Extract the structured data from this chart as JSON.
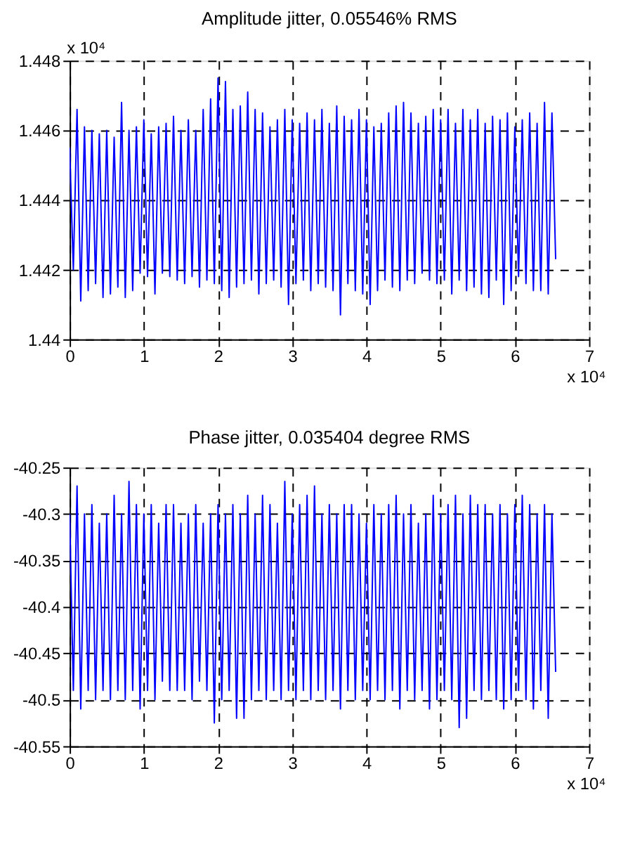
{
  "chart_data": [
    {
      "type": "line",
      "title": "Amplitude jitter,  0.05546% RMS",
      "series": [
        {
          "color": "#0000ff",
          "x": [
            0,
            0.05,
            0.1,
            0.15,
            0.2,
            0.25,
            0.3,
            0.35,
            0.4,
            0.45,
            0.5,
            0.55,
            0.6,
            0.65,
            0.7,
            0.75,
            0.8,
            0.85,
            0.9,
            0.95,
            1,
            1.05,
            1.1,
            1.15,
            1.2,
            1.25,
            1.3,
            1.35,
            1.4,
            1.45,
            1.5,
            1.55,
            1.6,
            1.65,
            1.7,
            1.75,
            1.8,
            1.85,
            1.9,
            1.95,
            2,
            2.05,
            2.1,
            2.15,
            2.2,
            2.25,
            2.3,
            2.35,
            2.4,
            2.45,
            2.5,
            2.55,
            2.6,
            2.65,
            2.7,
            2.75,
            2.8,
            2.85,
            2.9,
            2.95,
            3,
            3.05,
            3.1,
            3.15,
            3.2,
            3.25,
            3.3,
            3.35,
            3.4,
            3.45,
            3.5,
            3.55,
            3.6,
            3.65,
            3.7,
            3.75,
            3.8,
            3.85,
            3.9,
            3.95,
            4,
            4.05,
            4.1,
            4.15,
            4.2,
            4.25,
            4.3,
            4.35,
            4.4,
            4.45,
            4.5,
            4.55,
            4.6,
            4.65,
            4.7,
            4.75,
            4.8,
            4.85,
            4.9,
            4.95,
            5,
            5.05,
            5.1,
            5.15,
            5.2,
            5.25,
            5.3,
            5.35,
            5.4,
            5.45,
            5.5,
            5.55,
            5.6,
            5.65,
            5.7,
            5.75,
            5.8,
            5.85,
            5.9,
            5.95,
            6,
            6.05,
            6.1,
            6.15,
            6.2,
            6.25,
            6.3,
            6.35,
            6.4,
            6.45,
            6.5,
            6.55
          ],
          "values": [
            1.4455,
            1.442,
            1.4466,
            1.4411,
            1.4461,
            1.4414,
            1.446,
            1.4416,
            1.4459,
            1.4412,
            1.446,
            1.4413,
            1.4458,
            1.4415,
            1.4468,
            1.4412,
            1.446,
            1.4414,
            1.4461,
            1.4419,
            1.4463,
            1.4418,
            1.4459,
            1.4413,
            1.4461,
            1.4419,
            1.4462,
            1.4418,
            1.4464,
            1.4417,
            1.446,
            1.4416,
            1.4463,
            1.4418,
            1.446,
            1.4415,
            1.4466,
            1.4417,
            1.4469,
            1.4416,
            1.4475,
            1.4414,
            1.4474,
            1.4412,
            1.4466,
            1.4415,
            1.4467,
            1.4416,
            1.4471,
            1.4417,
            1.4466,
            1.4413,
            1.4465,
            1.4416,
            1.4461,
            1.4417,
            1.4463,
            1.4415,
            1.4466,
            1.441,
            1.4463,
            1.4416,
            1.4462,
            1.4417,
            1.4465,
            1.4414,
            1.4463,
            1.4416,
            1.4466,
            1.4415,
            1.4462,
            1.4414,
            1.4467,
            1.4407,
            1.4464,
            1.4416,
            1.4463,
            1.4414,
            1.4466,
            1.4413,
            1.4463,
            1.441,
            1.4461,
            1.4414,
            1.4462,
            1.4417,
            1.4465,
            1.4415,
            1.4467,
            1.4414,
            1.4468,
            1.4417,
            1.4465,
            1.4416,
            1.4462,
            1.4419,
            1.4464,
            1.4417,
            1.4466,
            1.4416,
            1.4463,
            1.4417,
            1.4466,
            1.4413,
            1.4462,
            1.4417,
            1.4466,
            1.4414,
            1.4463,
            1.4415,
            1.4466,
            1.4413,
            1.4462,
            1.4412,
            1.4464,
            1.4417,
            1.4463,
            1.441,
            1.4465,
            1.4414,
            1.4461,
            1.4418,
            1.4463,
            1.4416,
            1.4465,
            1.4414,
            1.4462,
            1.4414,
            1.4468,
            1.4413,
            1.4465,
            1.4423
          ]
        }
      ],
      "xlim": [
        0,
        7
      ],
      "xticks": [
        0,
        1,
        2,
        3,
        4,
        5,
        6,
        7
      ],
      "ylim": [
        1.44,
        1.448
      ],
      "yticks": [
        1.44,
        1.442,
        1.444,
        1.446,
        1.448
      ],
      "grid": true,
      "annotations": [
        "x 10⁴",
        "x 10⁴"
      ]
    },
    {
      "type": "line",
      "title": "Phase jitter, 0.035404 degree RMS",
      "series": [
        {
          "color": "#0000ff",
          "x": [
            0,
            0.05,
            0.1,
            0.15,
            0.2,
            0.25,
            0.3,
            0.35,
            0.4,
            0.45,
            0.5,
            0.55,
            0.6,
            0.65,
            0.7,
            0.75,
            0.8,
            0.85,
            0.9,
            0.95,
            1,
            1.05,
            1.1,
            1.15,
            1.2,
            1.25,
            1.3,
            1.35,
            1.4,
            1.45,
            1.5,
            1.55,
            1.6,
            1.65,
            1.7,
            1.75,
            1.8,
            1.85,
            1.9,
            1.95,
            2,
            2.05,
            2.1,
            2.15,
            2.2,
            2.25,
            2.3,
            2.35,
            2.4,
            2.45,
            2.5,
            2.55,
            2.6,
            2.65,
            2.7,
            2.75,
            2.8,
            2.85,
            2.9,
            2.95,
            3,
            3.05,
            3.1,
            3.15,
            3.2,
            3.25,
            3.3,
            3.35,
            3.4,
            3.45,
            3.5,
            3.55,
            3.6,
            3.65,
            3.7,
            3.75,
            3.8,
            3.85,
            3.9,
            3.95,
            4,
            4.05,
            4.1,
            4.15,
            4.2,
            4.25,
            4.3,
            4.35,
            4.4,
            4.45,
            4.5,
            4.55,
            4.6,
            4.65,
            4.7,
            4.75,
            4.8,
            4.85,
            4.9,
            4.95,
            5,
            5.05,
            5.1,
            5.15,
            5.2,
            5.25,
            5.3,
            5.35,
            5.4,
            5.45,
            5.5,
            5.55,
            5.6,
            5.65,
            5.7,
            5.75,
            5.8,
            5.85,
            5.9,
            5.95,
            6,
            6.05,
            6.1,
            6.15,
            6.2,
            6.25,
            6.3,
            6.35,
            6.4,
            6.45,
            6.5,
            6.55
          ],
          "values": [
            -40.3,
            -40.49,
            -40.27,
            -40.51,
            -40.3,
            -40.49,
            -40.29,
            -40.5,
            -40.31,
            -40.49,
            -40.3,
            -40.5,
            -40.28,
            -40.49,
            -40.3,
            -40.5,
            -40.265,
            -40.49,
            -40.29,
            -40.51,
            -40.3,
            -40.49,
            -40.29,
            -40.5,
            -40.31,
            -40.48,
            -40.29,
            -40.49,
            -40.29,
            -40.49,
            -40.31,
            -40.49,
            -40.3,
            -40.5,
            -40.29,
            -40.48,
            -40.31,
            -40.49,
            -40.3,
            -40.525,
            -40.29,
            -40.5,
            -40.3,
            -40.49,
            -40.29,
            -40.52,
            -40.3,
            -40.52,
            -40.28,
            -40.5,
            -40.3,
            -40.49,
            -40.28,
            -40.5,
            -40.29,
            -40.49,
            -40.31,
            -40.5,
            -40.265,
            -40.49,
            -40.3,
            -40.5,
            -40.29,
            -40.49,
            -40.28,
            -40.5,
            -40.27,
            -40.49,
            -40.3,
            -40.5,
            -40.29,
            -40.49,
            -40.3,
            -40.51,
            -40.29,
            -40.49,
            -40.29,
            -40.5,
            -40.3,
            -40.49,
            -40.31,
            -40.5,
            -40.29,
            -40.49,
            -40.3,
            -40.5,
            -40.29,
            -40.49,
            -40.28,
            -40.51,
            -40.3,
            -40.49,
            -40.29,
            -40.5,
            -40.31,
            -40.49,
            -40.3,
            -40.51,
            -40.28,
            -40.5,
            -40.3,
            -40.49,
            -40.29,
            -40.5,
            -40.28,
            -40.53,
            -40.3,
            -40.52,
            -40.28,
            -40.49,
            -40.29,
            -40.5,
            -40.29,
            -40.49,
            -40.3,
            -40.5,
            -40.29,
            -40.51,
            -40.3,
            -40.5,
            -40.29,
            -40.49,
            -40.28,
            -40.5,
            -40.29,
            -40.51,
            -40.3,
            -40.49,
            -40.29,
            -40.52,
            -40.3,
            -40.47
          ]
        }
      ],
      "xlim": [
        0,
        7
      ],
      "xticks": [
        0,
        1,
        2,
        3,
        4,
        5,
        6,
        7
      ],
      "ylim": [
        -40.55,
        -40.25
      ],
      "yticks": [
        -40.55,
        -40.5,
        -40.45,
        -40.4,
        -40.35,
        -40.3,
        -40.25
      ],
      "grid": true,
      "annotations": [
        "x 10⁴"
      ]
    }
  ]
}
